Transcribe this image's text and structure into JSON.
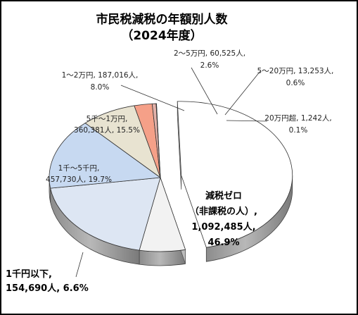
{
  "chart_data": {
    "type": "pie",
    "title": "市民税減税の年額別人数",
    "subtitle": "（2024年度）",
    "slices": [
      {
        "label": "減税ゼロ（非課税の人）",
        "value": 1092485,
        "percent": 46.9,
        "color": "#ffffff",
        "exploded": true,
        "label_lines": [
          "減税ゼロ",
          "（非課税の人）,",
          "1,092,485人,",
          "46.9%"
        ]
      },
      {
        "label": "1千円以下",
        "value": 154690,
        "percent": 6.6,
        "color": "#f2f2f2",
        "label_lines": [
          "1千円以下,",
          "154,690人, 6.6%"
        ]
      },
      {
        "label": "1千～5千円",
        "value": 457730,
        "percent": 19.7,
        "color": "#dde6f3",
        "label_lines": [
          "1千～5千円,",
          "457,730人, 19.7%"
        ]
      },
      {
        "label": "5千～1万円",
        "value": 360381,
        "percent": 15.5,
        "color": "#c7d9f1",
        "label_lines": [
          "5千～1万円,",
          "360,381人, 15.5%"
        ]
      },
      {
        "label": "1～2万円",
        "value": 187016,
        "percent": 8.0,
        "color": "#e8e3d1",
        "label_lines": [
          "1～2万円, 187,016人,",
          "8.0%"
        ]
      },
      {
        "label": "2～5万円",
        "value": 60525,
        "percent": 2.6,
        "color": "#f5a088",
        "label_lines": [
          "2～5万円, 60,525人,",
          "2.6%"
        ]
      },
      {
        "label": "5～20万円",
        "value": 13253,
        "percent": 0.6,
        "color": "#e2b1a9",
        "label_lines": [
          "5～20万円, 13,253人,",
          "0.6%"
        ]
      },
      {
        "label": "20万円超",
        "value": 1242,
        "percent": 0.1,
        "color": "#d6b4aa",
        "label_lines": [
          "20万円超, 1,242人,",
          "0.1%"
        ]
      }
    ]
  }
}
